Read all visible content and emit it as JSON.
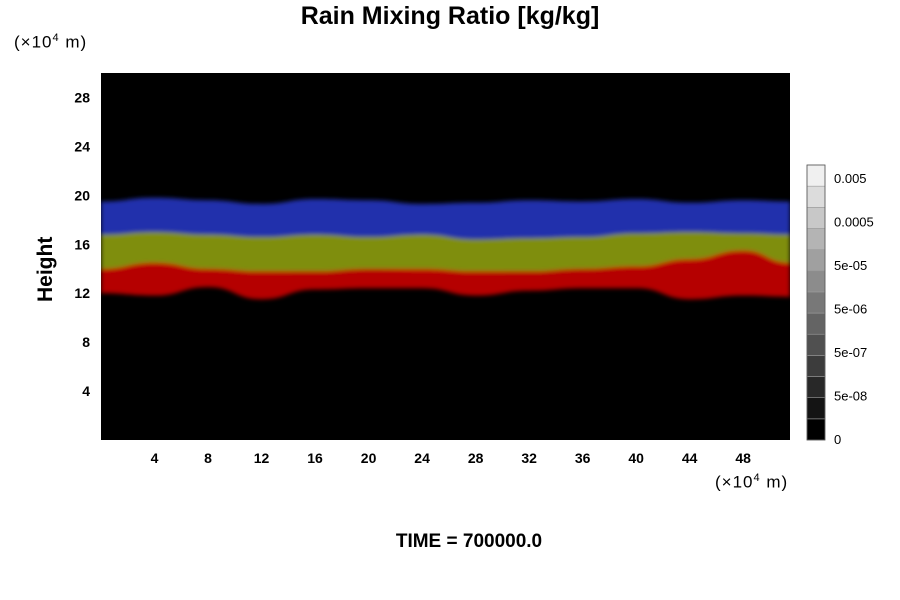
{
  "chart_data": {
    "type": "heatmap",
    "title": "Rain Mixing Ratio [kg/kg]",
    "xlabel": "",
    "ylabel": "Height",
    "x_unit": {
      "pre": "(×10",
      "exp": "4",
      "post": " m)"
    },
    "y_unit": {
      "pre": "(×10",
      "exp": "4",
      "post": " m)"
    },
    "xlim": [
      0,
      51.5
    ],
    "ylim": [
      0,
      30
    ],
    "x_ticks": [
      4,
      8,
      12,
      16,
      20,
      24,
      28,
      32,
      36,
      40,
      44,
      48
    ],
    "y_ticks": [
      4,
      8,
      12,
      16,
      20,
      24,
      28
    ],
    "background_color": "#000000",
    "layers": [
      {
        "name": "red",
        "color": "#c40000",
        "bottom": [
          12.0,
          11.8,
          12.5,
          11.5,
          12.3,
          12.4,
          12.4,
          11.8,
          12.2,
          12.4,
          12.4,
          11.5,
          11.8,
          11.7
        ],
        "top": [
          14.0,
          14.5,
          14.0,
          13.8,
          13.8,
          14.0,
          14.0,
          13.8,
          13.8,
          14.0,
          14.2,
          14.8,
          15.5,
          14.5
        ]
      },
      {
        "name": "olive",
        "color": "#8a9a10",
        "bottom": [
          13.8,
          14.3,
          13.8,
          13.6,
          13.7,
          13.9,
          13.7,
          13.6,
          13.7,
          13.9,
          14.0,
          14.5,
          15.3,
          14.3
        ],
        "top": [
          16.8,
          17.0,
          16.8,
          16.6,
          16.8,
          16.6,
          16.8,
          16.4,
          16.5,
          16.6,
          16.9,
          17.0,
          16.9,
          16.8
        ]
      },
      {
        "name": "blue",
        "color": "#2233bb",
        "bottom": [
          16.6,
          16.8,
          16.6,
          16.5,
          16.7,
          16.5,
          16.7,
          16.3,
          16.4,
          16.5,
          16.8,
          16.9,
          16.8,
          16.7
        ],
        "top": [
          19.5,
          19.8,
          19.6,
          19.3,
          19.7,
          19.6,
          19.3,
          19.4,
          19.6,
          19.5,
          19.7,
          19.4,
          19.6,
          19.5
        ]
      }
    ],
    "layer_x": [
      0,
      4,
      8,
      12,
      16,
      20,
      24,
      28,
      32,
      36,
      40,
      44,
      48,
      51.5
    ],
    "colorbar": {
      "labels": [
        "0.005",
        "0.0005",
        "5e-05",
        "5e-06",
        "5e-07",
        "5e-08",
        "0"
      ],
      "levels": 13,
      "color_low": "#000000",
      "color_high": "#f0f0f0"
    }
  },
  "footer": {
    "time_text": "TIME = 700000.0"
  }
}
